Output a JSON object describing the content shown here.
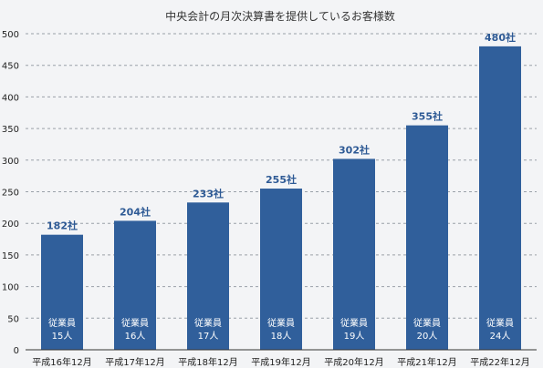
{
  "chart_data": {
    "type": "bar",
    "title": "中央会計の月次決算書を提供しているお客様数",
    "categories": [
      "平成16年12月",
      "平成17年12月",
      "平成18年12月",
      "平成19年12月",
      "平成20年12月",
      "平成21年12月",
      "平成22年12月"
    ],
    "values": [
      182,
      204,
      233,
      255,
      302,
      355,
      480
    ],
    "value_labels": [
      "182社",
      "204社",
      "233社",
      "255社",
      "302社",
      "355社",
      "480社"
    ],
    "bar_inner_labels": [
      [
        "従業員",
        "15人"
      ],
      [
        "従業員",
        "16人"
      ],
      [
        "従業員",
        "17人"
      ],
      [
        "従業員",
        "18人"
      ],
      [
        "従業員",
        "19人"
      ],
      [
        "従業員",
        "20人"
      ],
      [
        "従業員",
        "24人"
      ]
    ],
    "yticks": [
      0,
      50,
      100,
      150,
      200,
      250,
      300,
      350,
      400,
      450,
      500
    ],
    "ylim": [
      0,
      500
    ],
    "xlabel": "",
    "ylabel": "",
    "grid": true,
    "bar_color": "#305f9b"
  }
}
